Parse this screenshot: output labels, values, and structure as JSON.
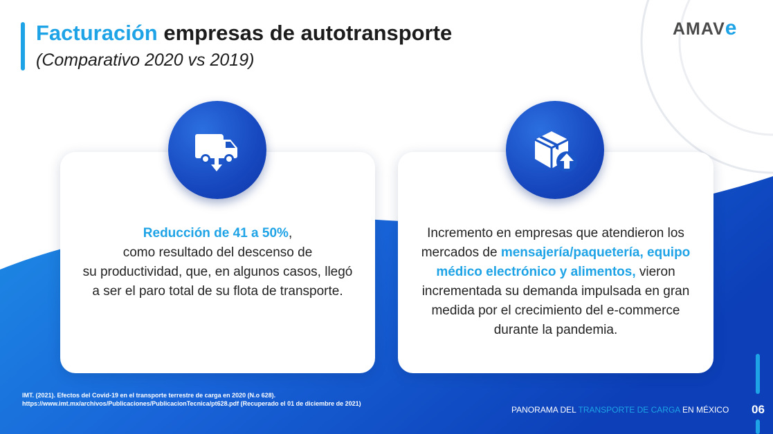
{
  "header": {
    "title_highlight": "Facturación",
    "title_rest": " empresas de autotransporte",
    "subtitle": "(Comparativo 2020 vs 2019)"
  },
  "logo": {
    "text": "AMAV",
    "accent_letter": "e"
  },
  "cards": [
    {
      "icon": "delivery-van-down-icon",
      "highlight": "Reducción de 41 a 50%",
      "lines": [
        ",",
        "como resultado del descenso de",
        "su productividad, que, en algunos casos, llegó",
        "a ser el paro total de su flota de transporte."
      ]
    },
    {
      "icon": "box-up-arrow-icon",
      "text_1": "Incremento en empresas que atendieron los mercados de ",
      "highlight": "mensajería/paquetería, equipo médico electrónico y alimentos,",
      "text_2": " vieron incrementada su demanda impulsada en gran medida por el crecimiento del e-commerce durante la pandemia."
    }
  ],
  "footnote": {
    "line1": "IMT. (2021). Efectos del Covid-19 en el transporte terrestre de carga en 2020 (N.o 628).",
    "line2": "https://www.imt.mx/archivos/Publicaciones/PublicacionTecnica/pt628.pdf (Recuperado el 01 de diciembre de 2021)"
  },
  "footer": {
    "prefix": "PANORAMA DEL ",
    "highlight": "TRANSPORTE DE CARGA",
    "suffix": " EN MÉXICO",
    "page": "06"
  },
  "colors": {
    "accent": "#1ea3e6",
    "dark_blue": "#0e36a6",
    "text": "#1c1c1c"
  }
}
